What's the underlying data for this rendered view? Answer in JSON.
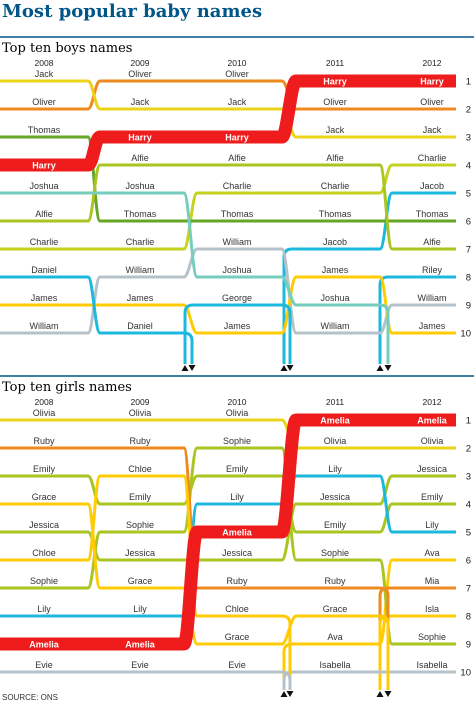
{
  "title": "Most popular baby names",
  "source": "SOURCE: ONS",
  "colors": {
    "orange": "#ee8a1e",
    "yellow": "#ecd219",
    "olive": "#a9c51f",
    "red": "#ee1c1c",
    "teal": "#76cdbe",
    "green": "#66a626",
    "lime": "#c5d21f",
    "cyan": "#1cb9de",
    "gold": "#ffcb05",
    "grey": "#b5c2c9",
    "rule": "#005689"
  },
  "chart_data": [
    {
      "type": "bump",
      "title": "Top ten boys names",
      "years": [
        "2008",
        "2009",
        "2010",
        "2011",
        "2012"
      ],
      "ranks": [
        "1",
        "2",
        "3",
        "4",
        "5",
        "6",
        "7",
        "8",
        "9",
        "10"
      ],
      "series": [
        {
          "name": "Harry",
          "color": "red",
          "highlight": true,
          "ranks": [
            4,
            3,
            3,
            1,
            1
          ]
        },
        {
          "name": "Oliver",
          "color": "orange",
          "ranks": [
            2,
            1,
            1,
            2,
            2
          ]
        },
        {
          "name": "Jack",
          "color": "yellow",
          "ranks": [
            1,
            2,
            2,
            3,
            3
          ]
        },
        {
          "name": "Charlie",
          "color": "lime",
          "ranks": [
            7,
            7,
            5,
            5,
            4
          ]
        },
        {
          "name": "Jacob",
          "color": "cyan",
          "ranks": [
            null,
            null,
            null,
            7,
            5
          ]
        },
        {
          "name": "Thomas",
          "color": "green",
          "ranks": [
            3,
            6,
            6,
            6,
            6
          ]
        },
        {
          "name": "Alfie",
          "color": "olive",
          "ranks": [
            6,
            4,
            4,
            4,
            7
          ]
        },
        {
          "name": "Riley",
          "color": "cyan",
          "ranks": [
            null,
            null,
            null,
            null,
            8
          ]
        },
        {
          "name": "William",
          "color": "grey",
          "ranks": [
            10,
            8,
            7,
            10,
            9
          ]
        },
        {
          "name": "James",
          "color": "gold",
          "ranks": [
            9,
            9,
            10,
            8,
            10
          ]
        },
        {
          "name": "Joshua",
          "color": "teal",
          "ranks": [
            5,
            5,
            8,
            9,
            null
          ]
        },
        {
          "name": "Daniel",
          "color": "cyan",
          "ranks": [
            8,
            10,
            null,
            null,
            null
          ]
        },
        {
          "name": "George",
          "color": "cyan",
          "ranks": [
            null,
            null,
            9,
            null,
            null
          ]
        }
      ]
    },
    {
      "type": "bump",
      "title": "Top ten girls names",
      "years": [
        "2008",
        "2009",
        "2010",
        "2011",
        "2012"
      ],
      "ranks": [
        "1",
        "2",
        "3",
        "4",
        "5",
        "6",
        "7",
        "8",
        "9",
        "10"
      ],
      "series": [
        {
          "name": "Amelia",
          "color": "red",
          "highlight": true,
          "ranks": [
            9,
            9,
            5,
            1,
            1
          ]
        },
        {
          "name": "Olivia",
          "color": "yellow",
          "ranks": [
            1,
            1,
            1,
            2,
            2
          ]
        },
        {
          "name": "Jessica",
          "color": "olive",
          "ranks": [
            5,
            6,
            6,
            4,
            3
          ]
        },
        {
          "name": "Emily",
          "color": "olive",
          "ranks": [
            3,
            4,
            3,
            5,
            4
          ]
        },
        {
          "name": "Lily",
          "color": "cyan",
          "ranks": [
            8,
            8,
            4,
            3,
            5
          ]
        },
        {
          "name": "Ava",
          "color": "gold",
          "ranks": [
            null,
            null,
            null,
            9,
            6
          ]
        },
        {
          "name": "Mia",
          "color": "orange",
          "ranks": [
            null,
            null,
            null,
            null,
            7
          ]
        },
        {
          "name": "Isla",
          "color": "gold",
          "ranks": [
            null,
            null,
            null,
            null,
            8
          ]
        },
        {
          "name": "Sophie",
          "color": "olive",
          "ranks": [
            7,
            5,
            2,
            6,
            9
          ]
        },
        {
          "name": "Isabella",
          "color": "grey",
          "ranks": [
            null,
            null,
            null,
            10,
            10
          ]
        },
        {
          "name": "Ruby",
          "color": "orange",
          "ranks": [
            2,
            2,
            7,
            7,
            null
          ]
        },
        {
          "name": "Chloe",
          "color": "gold",
          "ranks": [
            6,
            3,
            8,
            null,
            null
          ]
        },
        {
          "name": "Grace",
          "color": "gold",
          "ranks": [
            4,
            7,
            9,
            8,
            null
          ]
        },
        {
          "name": "Evie",
          "color": "grey",
          "ranks": [
            10,
            10,
            10,
            null,
            null
          ]
        }
      ]
    }
  ]
}
